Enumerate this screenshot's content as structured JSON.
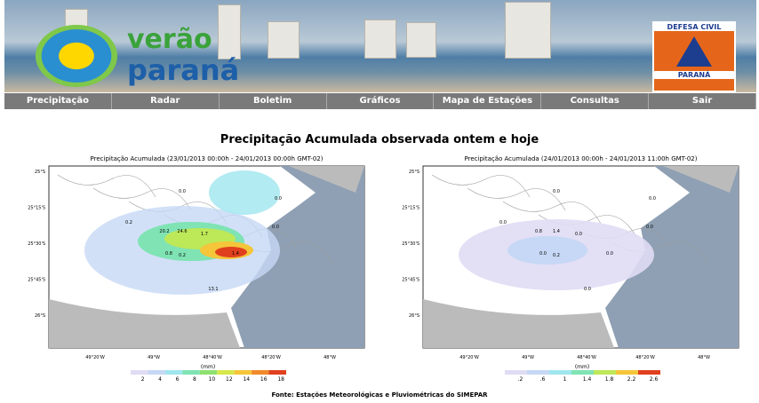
{
  "header": {
    "logo_line1": "verão",
    "logo_line2": "paraná",
    "badge_top": "DEFESA CIVIL",
    "badge_bottom": "PARANÁ"
  },
  "nav": [
    "Precipitação",
    "Radar",
    "Boletim",
    "Gráficos",
    "Mapa de Estações",
    "Consultas",
    "Sair"
  ],
  "title": "Precipitação Acumulada observada ontem e hoje",
  "maps": [
    {
      "title": "Precipitação Acumulada (23/01/2013 00:00h - 24/01/2013 00:00h GMT-02)",
      "lat_labels": [
        "25°S",
        "25°15'S",
        "25°30'S",
        "25°45'S",
        "26°S"
      ],
      "lon_labels": [
        "49°20'W",
        "49°W",
        "48°40'W",
        "48°20'W",
        "48°W"
      ],
      "unit": "(mm)",
      "scale": [
        "2",
        "4",
        "6",
        "8",
        "10",
        "12",
        "14",
        "16",
        "18"
      ],
      "stations": [
        "0.0",
        "0.2",
        "20.2",
        "24.6",
        "1.7",
        "0.8",
        "0.2",
        "1.4",
        "13.1",
        "0.0",
        "0.0"
      ]
    },
    {
      "title": "Precipitação Acumulada (24/01/2013 00:00h - 24/01/2013 11:00h GMT-02)",
      "lat_labels": [
        "25°S",
        "25°15'S",
        "25°30'S",
        "25°45'S",
        "26°S"
      ],
      "lon_labels": [
        "49°20'W",
        "49°W",
        "48°40'W",
        "48°20'W",
        "48°W"
      ],
      "unit": "(mm)",
      "scale": [
        ".2",
        ".6",
        "1",
        "1.4",
        "1.8",
        "2.2",
        "2.6"
      ],
      "stations": [
        "0.0",
        "0.0",
        "0.8",
        "1.4",
        "0.0",
        "0.0",
        "0.2",
        "0.0",
        "0.0",
        "0.0",
        "0.0"
      ]
    }
  ],
  "footer": "Fonte: Estações Meteorológicas e Pluviométricas do SIMEPAR"
}
